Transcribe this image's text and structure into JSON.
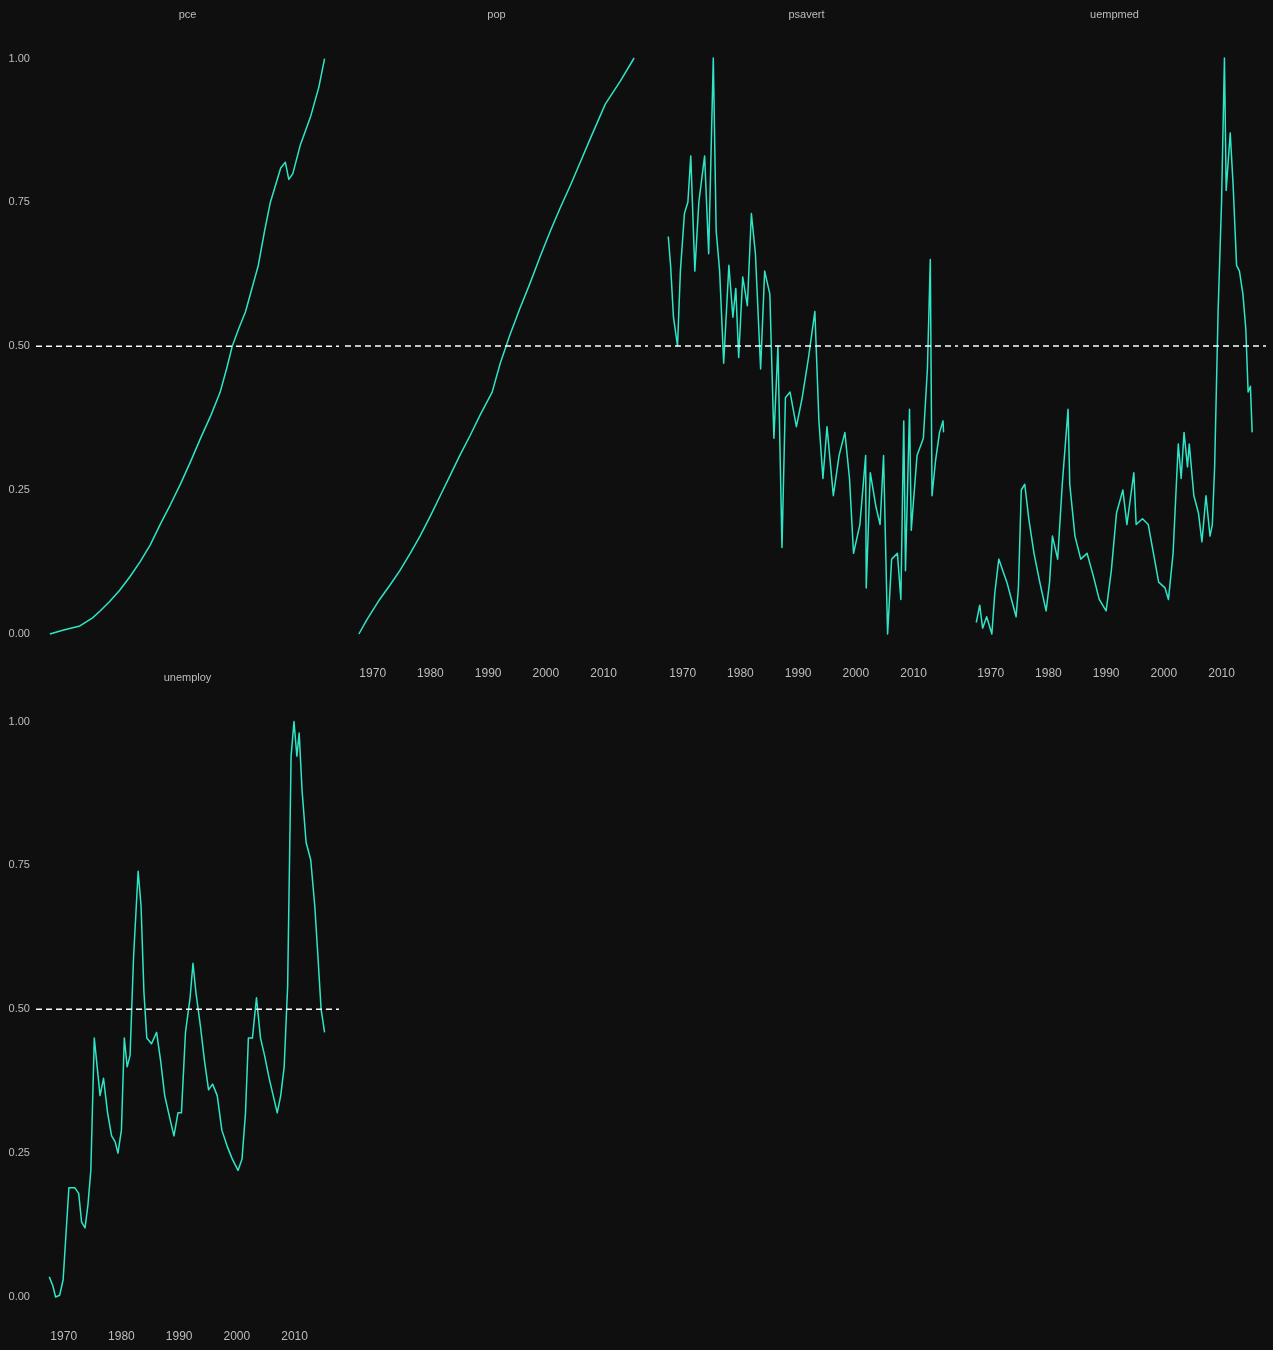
{
  "chart_data": [
    {
      "type": "line",
      "title": "pce",
      "color": "#2ee6c6",
      "xlim": [
        1965.2,
        2017.7
      ],
      "ylim": [
        0,
        1
      ],
      "yticks": [
        {
          "value": 0,
          "label": "0.00"
        },
        {
          "value": 0.25,
          "label": "0.25"
        },
        {
          "value": 0.5,
          "label": "0.50"
        },
        {
          "value": 0.75,
          "label": "0.75"
        },
        {
          "value": 1,
          "label": "1.00"
        }
      ],
      "tick_labels": "y",
      "ref_lines": [
        {
          "axis": "y",
          "value": 0.5,
          "color": "#ffffff",
          "line_style": "dashed"
        }
      ],
      "x": [
        1967.6,
        1970.0,
        1972.8,
        1975.0,
        1976.3,
        1978.0,
        1979.7,
        1981.5,
        1983.2,
        1985.0,
        1986.7,
        1988.5,
        1990.2,
        1992.0,
        1993.7,
        1995.5,
        1997.1,
        1998.2,
        1999.2,
        2000.3,
        2001.5,
        2002.6,
        2003.7,
        2004.8,
        2005.8,
        2006.7,
        2007.6,
        2008.4,
        2009.0,
        2009.7,
        2011.0,
        2012.8,
        2014.2,
        2015.2
      ],
      "values": [
        0,
        0.007,
        0.014,
        0.028,
        0.04,
        0.057,
        0.076,
        0.1,
        0.125,
        0.155,
        0.19,
        0.225,
        0.26,
        0.3,
        0.34,
        0.38,
        0.42,
        0.46,
        0.5,
        0.53,
        0.56,
        0.6,
        0.64,
        0.7,
        0.75,
        0.78,
        0.81,
        0.82,
        0.79,
        0.8,
        0.85,
        0.9,
        0.95,
        1.0
      ]
    },
    {
      "type": "line",
      "title": "pop",
      "color": "#2ee6c6",
      "xlim": [
        1965.2,
        2017.7
      ],
      "xticks": [
        1970,
        1980,
        1990,
        2000,
        2010
      ],
      "ylim": [
        0,
        1
      ],
      "tick_labels": "x",
      "ref_lines": [
        {
          "axis": "y",
          "value": 0.5,
          "color": "#ffffff",
          "line_style": "dashed"
        }
      ],
      "x": [
        1967.6,
        1969.0,
        1971.2,
        1973.0,
        1974.7,
        1976.5,
        1978.2,
        1980.0,
        1981.7,
        1983.4,
        1985.1,
        1986.9,
        1988.6,
        1990.7,
        1992.1,
        1993.8,
        1995.5,
        1997.3,
        1999.0,
        2000.8,
        2002.5,
        2004.3,
        2006.0,
        2007.7,
        2009.0,
        2010.3,
        2012.9,
        2015.3
      ],
      "values": [
        0,
        0.025,
        0.06,
        0.085,
        0.11,
        0.14,
        0.17,
        0.205,
        0.24,
        0.275,
        0.31,
        0.345,
        0.38,
        0.42,
        0.47,
        0.52,
        0.565,
        0.61,
        0.655,
        0.7,
        0.74,
        0.78,
        0.82,
        0.86,
        0.89,
        0.92,
        0.96,
        1.0
      ]
    },
    {
      "type": "line",
      "title": "psavert",
      "color": "#2ee6c6",
      "xlim": [
        1965.2,
        2017.7
      ],
      "xticks": [
        1970,
        1980,
        1990,
        2000,
        2010
      ],
      "ylim": [
        0,
        1
      ],
      "tick_labels": "x",
      "ref_lines": [
        {
          "axis": "y",
          "value": 0.5,
          "color": "#ffffff",
          "line_style": "dashed"
        }
      ],
      "x": [
        1967.5,
        1967.9,
        1968.4,
        1969.1,
        1969.6,
        1970.3,
        1970.9,
        1971.4,
        1972.1,
        1972.8,
        1973.8,
        1974.5,
        1975.3,
        1975.8,
        1976.4,
        1977.1,
        1978.0,
        1978.7,
        1979.2,
        1979.7,
        1980.4,
        1981.2,
        1981.9,
        1982.6,
        1983.5,
        1984.2,
        1985.1,
        1985.8,
        1986.5,
        1987.2,
        1987.8,
        1988.6,
        1989.7,
        1990.7,
        1991.8,
        1992.9,
        1993.6,
        1994.3,
        1995.0,
        1996.1,
        1997.1,
        1998.1,
        1998.9,
        1999.6,
        2000.7,
        2001.7,
        2001.8,
        2002.5,
        2003.5,
        2004.2,
        2004.8,
        2005.5,
        2006.2,
        2007.2,
        2007.8,
        2008.3,
        2008.6,
        2009.3,
        2009.6,
        2010.6,
        2011.7,
        2012.4,
        2012.9,
        2013.2,
        2013.8,
        2014.5,
        2015.1,
        2015.2
      ],
      "values": [
        0.69,
        0.64,
        0.55,
        0.5,
        0.63,
        0.73,
        0.75,
        0.83,
        0.63,
        0.75,
        0.83,
        0.66,
        1.0,
        0.7,
        0.63,
        0.47,
        0.64,
        0.55,
        0.6,
        0.48,
        0.62,
        0.57,
        0.73,
        0.66,
        0.46,
        0.63,
        0.59,
        0.34,
        0.5,
        0.15,
        0.41,
        0.42,
        0.36,
        0.41,
        0.48,
        0.56,
        0.37,
        0.27,
        0.36,
        0.24,
        0.31,
        0.35,
        0.27,
        0.14,
        0.19,
        0.31,
        0.08,
        0.28,
        0.22,
        0.19,
        0.31,
        0,
        0.13,
        0.14,
        0.06,
        0.37,
        0.11,
        0.39,
        0.18,
        0.31,
        0.34,
        0.46,
        0.65,
        0.24,
        0.3,
        0.35,
        0.37,
        0.35
      ]
    },
    {
      "type": "line",
      "title": "uempmed",
      "color": "#2ee6c6",
      "xlim": [
        1965.2,
        2017.7
      ],
      "xticks": [
        1970,
        1980,
        1990,
        2000,
        2010
      ],
      "ylim": [
        0,
        1
      ],
      "tick_labels": "x",
      "ref_lines": [
        {
          "axis": "y",
          "value": 0.5,
          "color": "#ffffff",
          "line_style": "dashed"
        }
      ],
      "x": [
        1967.5,
        1968.1,
        1968.6,
        1969.3,
        1970.2,
        1970.7,
        1971.4,
        1972.1,
        1972.8,
        1973.6,
        1974.4,
        1974.8,
        1975.3,
        1975.9,
        1976.6,
        1977.5,
        1978.5,
        1979.6,
        1980.2,
        1980.7,
        1981.6,
        1982.4,
        1983.4,
        1983.7,
        1984.6,
        1985.6,
        1986.7,
        1987.8,
        1988.8,
        1990.0,
        1990.9,
        1991.8,
        1992.9,
        1993.6,
        1994.4,
        1994.8,
        1995.2,
        1996.3,
        1997.3,
        1998.2,
        1999.1,
        2000.2,
        2000.8,
        2001.6,
        2002.5,
        2003.0,
        2003.5,
        2004.1,
        2004.4,
        2005.2,
        2006.0,
        2006.6,
        2007.3,
        2008.0,
        2008.4,
        2008.8,
        2009.4,
        2010.0,
        2010.5,
        2010.8,
        2011.5,
        2012.0,
        2012.6,
        2013.1,
        2013.7,
        2014.2,
        2014.6,
        2015.0,
        2015.3
      ],
      "values": [
        0.02,
        0.05,
        0.01,
        0.03,
        0,
        0.07,
        0.13,
        0.11,
        0.09,
        0.06,
        0.03,
        0.08,
        0.25,
        0.26,
        0.2,
        0.14,
        0.09,
        0.04,
        0.09,
        0.17,
        0.13,
        0.26,
        0.39,
        0.26,
        0.17,
        0.13,
        0.14,
        0.1,
        0.06,
        0.04,
        0.11,
        0.21,
        0.25,
        0.19,
        0.25,
        0.28,
        0.19,
        0.2,
        0.19,
        0.14,
        0.09,
        0.08,
        0.06,
        0.14,
        0.33,
        0.27,
        0.35,
        0.29,
        0.33,
        0.24,
        0.21,
        0.16,
        0.24,
        0.17,
        0.19,
        0.29,
        0.56,
        0.75,
        1.0,
        0.77,
        0.87,
        0.78,
        0.64,
        0.63,
        0.59,
        0.53,
        0.42,
        0.43,
        0.35
      ]
    },
    {
      "type": "line",
      "title": "unemploy",
      "color": "#2ee6c6",
      "xlim": [
        1965.2,
        2017.7
      ],
      "xticks": [
        1970,
        1980,
        1990,
        2000,
        2010
      ],
      "ylim": [
        0,
        1
      ],
      "yticks": [
        {
          "value": 0,
          "label": "0.00"
        },
        {
          "value": 0.25,
          "label": "0.25"
        },
        {
          "value": 0.5,
          "label": "0.50"
        },
        {
          "value": 0.75,
          "label": "0.75"
        },
        {
          "value": 1,
          "label": "1.00"
        }
      ],
      "ref_lines": [
        {
          "axis": "y",
          "value": 0.5,
          "color": "#ffffff",
          "line_style": "dashed"
        }
      ],
      "x": [
        1967.5,
        1968.1,
        1968.6,
        1969.3,
        1969.9,
        1970.4,
        1970.9,
        1971.9,
        1972.6,
        1973.1,
        1973.7,
        1974.2,
        1974.7,
        1975.3,
        1975.8,
        1976.3,
        1976.9,
        1977.6,
        1978.3,
        1978.9,
        1979.4,
        1980.0,
        1980.5,
        1981.0,
        1981.5,
        1982.1,
        1982.9,
        1983.4,
        1983.9,
        1984.4,
        1985.2,
        1986.1,
        1986.8,
        1987.5,
        1988.4,
        1989.1,
        1989.8,
        1990.4,
        1991.1,
        1991.9,
        1992.4,
        1992.9,
        1993.7,
        1994.4,
        1995.1,
        1995.8,
        1996.6,
        1997.4,
        1998.4,
        1999.2,
        2000.2,
        2000.9,
        2001.5,
        2002.0,
        2002.7,
        2003.4,
        2004.1,
        2004.8,
        2005.6,
        2006.3,
        2007.0,
        2007.6,
        2008.2,
        2008.8,
        2009.4,
        2009.9,
        2010.4,
        2010.8,
        2011.3,
        2012.0,
        2012.8,
        2013.5,
        2014.0,
        2014.6,
        2015.2
      ],
      "values": [
        0.035,
        0.02,
        0,
        0.003,
        0.03,
        0.11,
        0.19,
        0.19,
        0.18,
        0.13,
        0.12,
        0.16,
        0.22,
        0.45,
        0.4,
        0.35,
        0.38,
        0.32,
        0.28,
        0.27,
        0.25,
        0.29,
        0.45,
        0.4,
        0.42,
        0.59,
        0.74,
        0.68,
        0.53,
        0.45,
        0.44,
        0.46,
        0.41,
        0.35,
        0.31,
        0.28,
        0.32,
        0.32,
        0.46,
        0.52,
        0.58,
        0.53,
        0.47,
        0.41,
        0.36,
        0.37,
        0.35,
        0.29,
        0.26,
        0.24,
        0.22,
        0.24,
        0.32,
        0.45,
        0.45,
        0.52,
        0.45,
        0.42,
        0.38,
        0.35,
        0.32,
        0.35,
        0.4,
        0.54,
        0.94,
        1.0,
        0.94,
        0.98,
        0.88,
        0.79,
        0.76,
        0.68,
        0.6,
        0.5,
        0.46
      ]
    }
  ]
}
